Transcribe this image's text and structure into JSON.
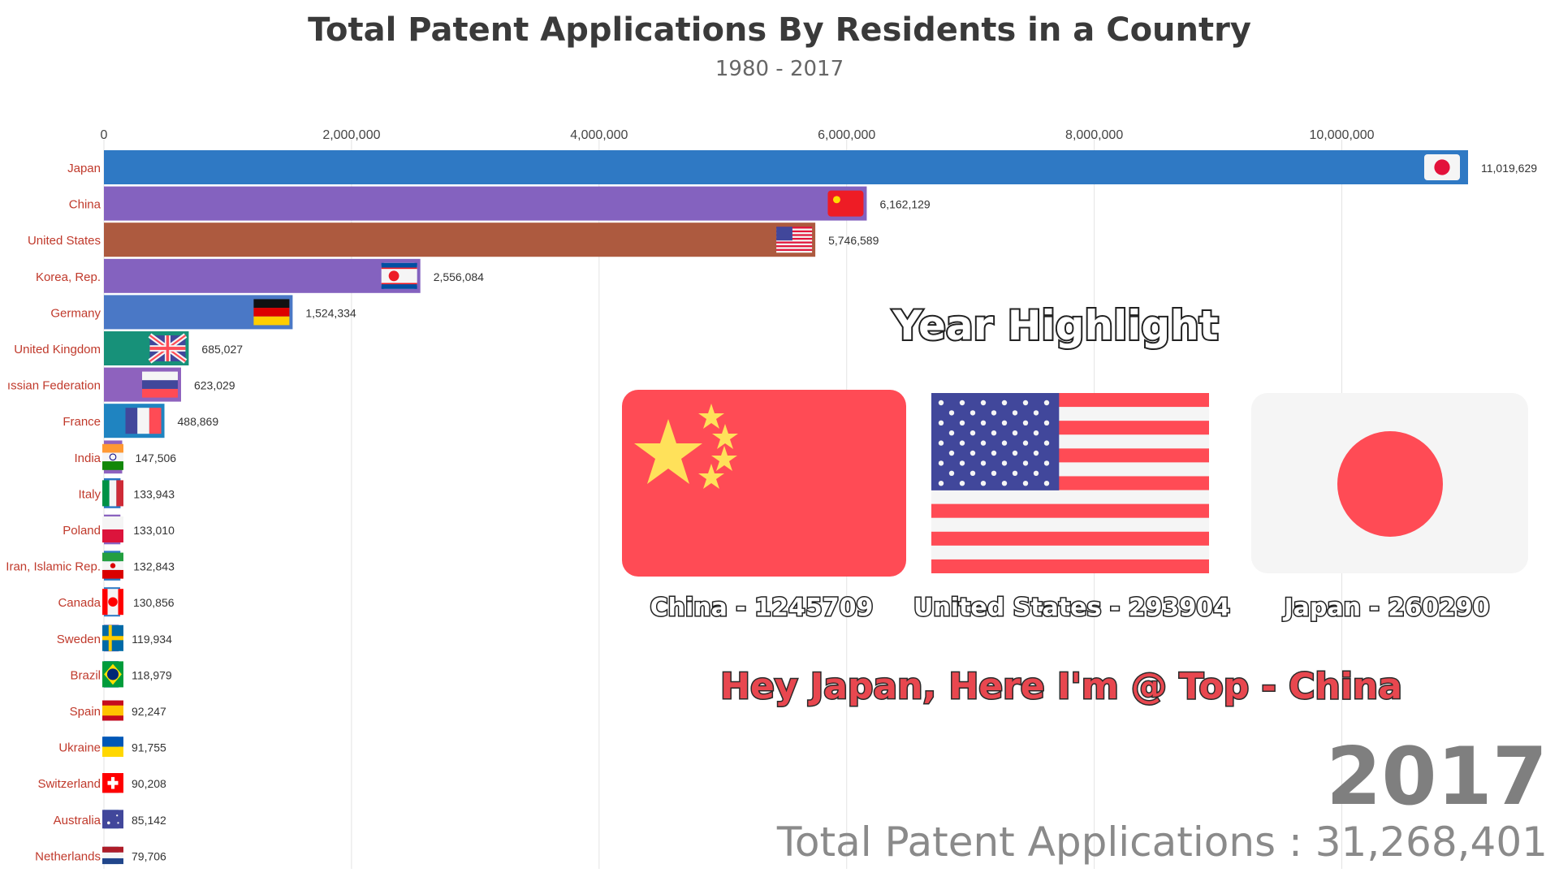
{
  "chart_data": {
    "type": "bar",
    "title": "Total Patent Applications By Residents in a Country",
    "subtitle": "1980 - 2017",
    "xlim": [
      0,
      11019629
    ],
    "x_ticks": [
      0,
      2000000,
      4000000,
      6000000,
      8000000,
      10000000
    ],
    "x_tick_labels": [
      "0",
      "2,000,000",
      "4,000,000",
      "6,000,000",
      "8,000,000",
      "10,000,000"
    ],
    "grid": true,
    "categories": [
      "Japan",
      "China",
      "United States",
      "Korea, Rep.",
      "Germany",
      "United Kingdom",
      "ıssian Federation",
      "France",
      "India",
      "Italy",
      "Poland",
      "Iran, Islamic Rep.",
      "Canada",
      "Sweden",
      "Brazil",
      "Spain",
      "Ukraine",
      "Switzerland",
      "Australia",
      "Netherlands"
    ],
    "values": [
      11019629,
      6162129,
      5746589,
      2556084,
      1524334,
      685027,
      623029,
      488869,
      147506,
      133943,
      133010,
      132843,
      130856,
      119934,
      118979,
      92247,
      91755,
      90208,
      85142,
      79706
    ],
    "value_labels": [
      "11,019,629",
      "6,162,129",
      "5,746,589",
      "2,556,084",
      "1,524,334",
      "685,027",
      "623,029",
      "488,869",
      "147,506",
      "133,943",
      "133,010",
      "132,843",
      "130,856",
      "119,934",
      "118,979",
      "92,247",
      "91,755",
      "90,208",
      "85,142",
      "79,706"
    ],
    "bar_colors": [
      "#2f79c4",
      "#8462bf",
      "#ad5a3f",
      "#8462bf",
      "#4a78c6",
      "#179179",
      "#8e62be",
      "#1f84c1",
      "#8f62bf",
      "#2a78c4",
      "#8a62bf",
      "#2a78c4",
      "#2a78c4",
      "#8a62bf",
      "#2a78c4",
      "#2a78c4",
      "#2a78c4",
      "#8a62bf",
      "#2a78c4",
      "#2a78c4"
    ],
    "flags": [
      "japan-flag",
      "china-flag",
      "usa-flag",
      "korea-flag",
      "germany-flag",
      "uk-flag",
      "russia-flag",
      "france-flag",
      "india-flag",
      "italy-flag",
      "poland-flag",
      "iran-flag",
      "canada-flag",
      "sweden-flag",
      "brazil-flag",
      "spain-flag",
      "ukraine-flag",
      "switzerland-flag",
      "australia-flag",
      "netherlands-flag"
    ],
    "year": "2017",
    "total_label": "Total Patent Applications : 31,268,401"
  },
  "highlight": {
    "title": "Year Highlight",
    "items": [
      {
        "label": "China - 1245709",
        "flag": "china-flag"
      },
      {
        "label": "United States - 293904",
        "flag": "usa-flag"
      },
      {
        "label": "Japan - 260290",
        "flag": "japan-flag"
      }
    ],
    "quote": "Hey Japan, Here I'm @ Top - China"
  },
  "colors": {
    "china_red": "#ff4b55",
    "usa_blue": "#41479b",
    "japan_red": "#ff4b55",
    "japan_white": "#f5f5f5"
  }
}
